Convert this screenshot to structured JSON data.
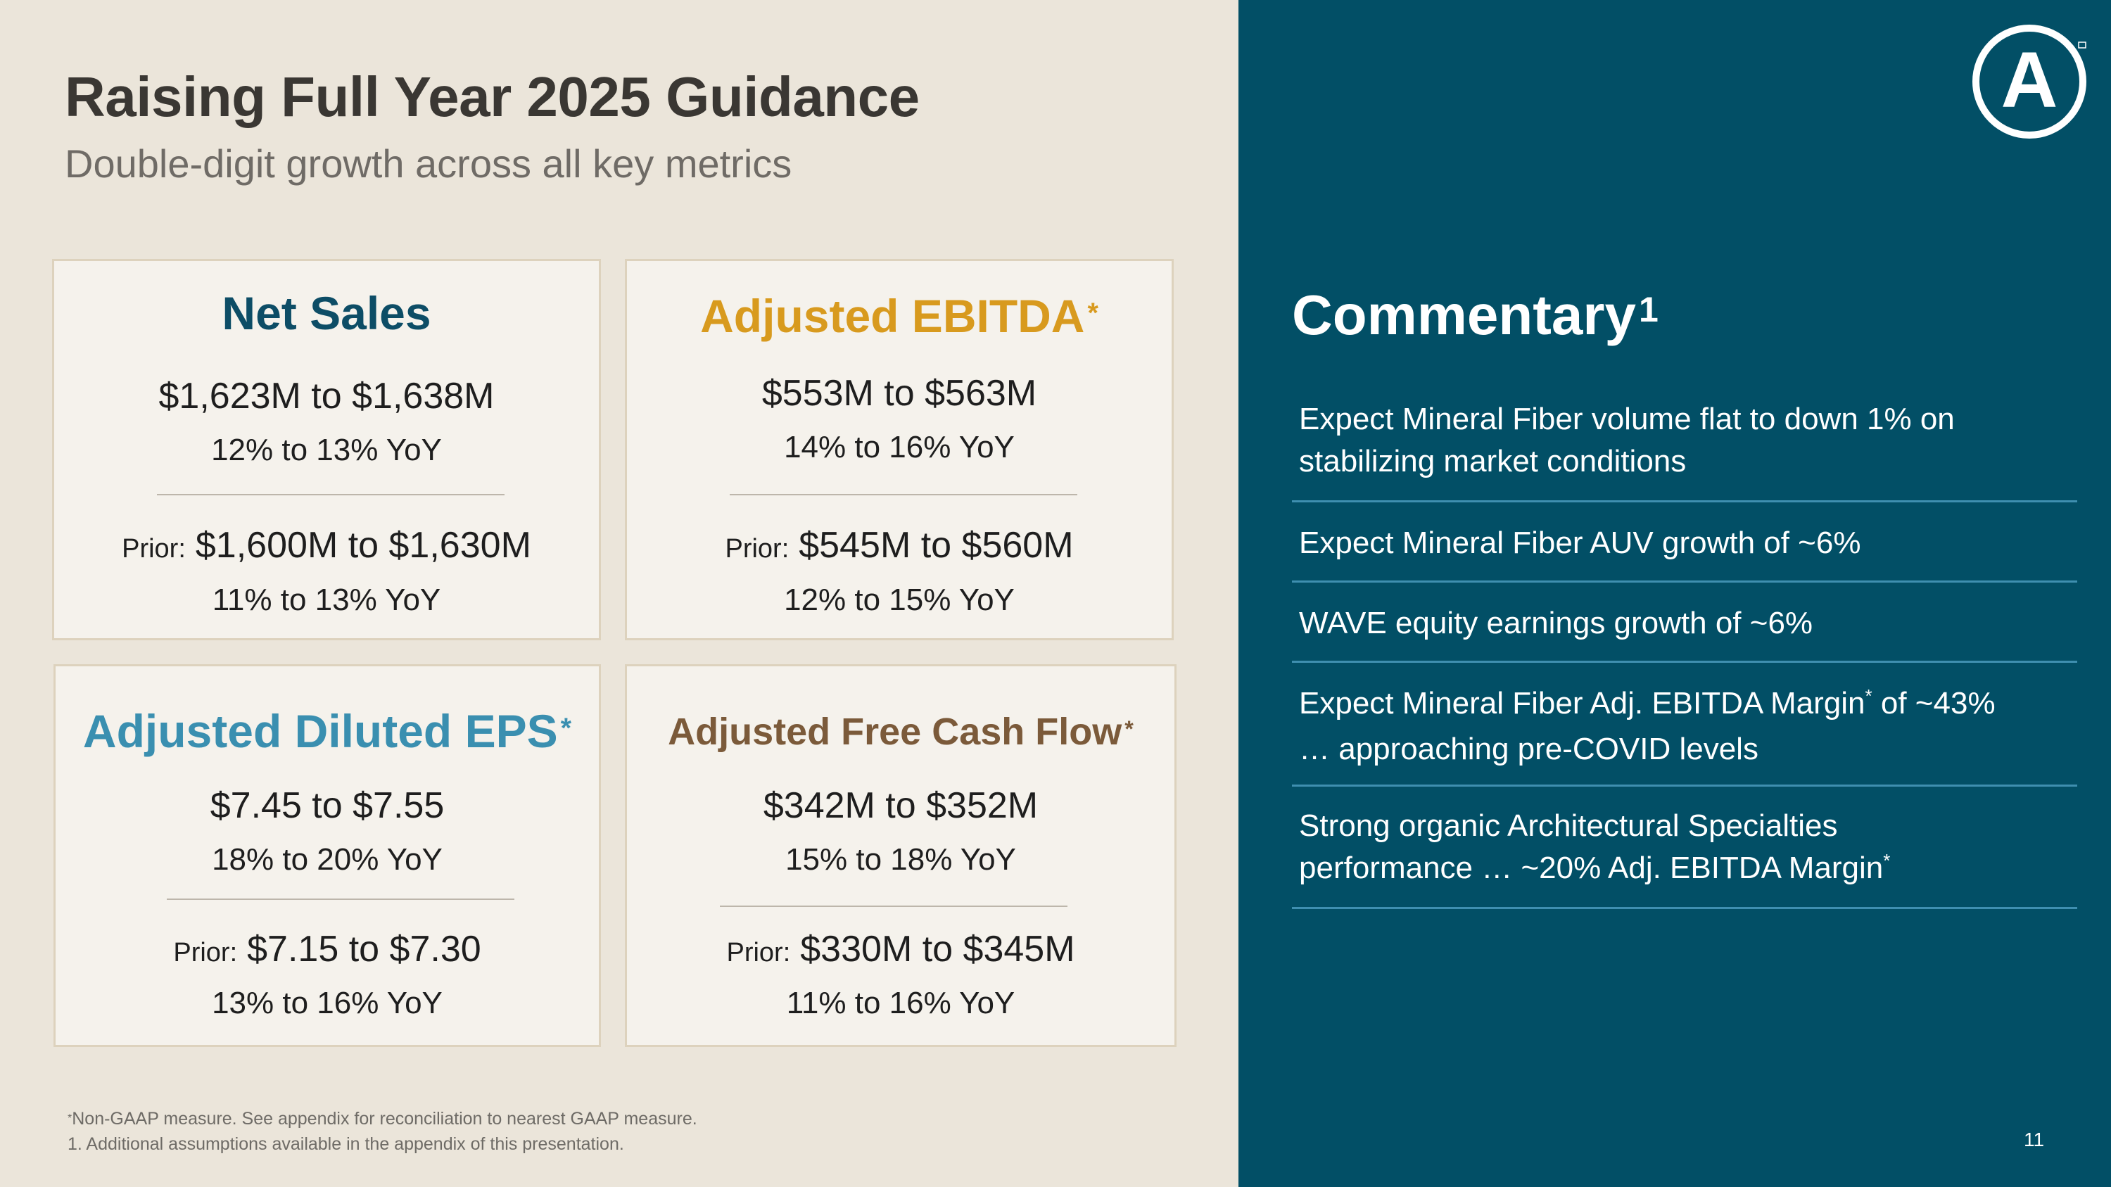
{
  "slide": {
    "title": "Raising Full Year 2025 Guidance",
    "subtitle": "Double-digit growth across all key metrics",
    "page_number": "11"
  },
  "colors": {
    "left_bg": "#ebe5da",
    "right_bg": "#024f66",
    "net_sales": "#0d4d66",
    "adj_ebitda": "#d89a1e",
    "adj_eps": "#3a8fb0",
    "adj_fcf": "#7b5a3a",
    "divider": "#3f8fb0"
  },
  "cards": {
    "net_sales": {
      "title": "Net Sales",
      "asterisk": "",
      "value": "$1,623M to $1,638M",
      "yoy": "12% to 13% YoY",
      "prior_label": "Prior:",
      "prior_value": "$1,600M to $1,630M",
      "prior_yoy": "11% to 13% YoY"
    },
    "adj_ebitda": {
      "title": "Adjusted EBITDA",
      "asterisk": "*",
      "value": "$553M to $563M",
      "yoy": "14% to 16% YoY",
      "prior_label": "Prior:",
      "prior_value": "$545M to $560M",
      "prior_yoy": "12% to 15% YoY"
    },
    "adj_eps": {
      "title": "Adjusted Diluted EPS",
      "asterisk": "*",
      "value": "$7.45 to $7.55",
      "yoy": "18% to 20% YoY",
      "prior_label": "Prior:",
      "prior_value": "$7.15 to $7.30",
      "prior_yoy": "13% to 16% YoY"
    },
    "adj_fcf": {
      "title": "Adjusted Free Cash Flow",
      "asterisk": "*",
      "value": "$342M to $352M",
      "yoy": "15% to 18% YoY",
      "prior_label": "Prior:",
      "prior_value": "$330M to $345M",
      "prior_yoy": "11% to 16% YoY"
    }
  },
  "footnotes": {
    "note1_mark": "*",
    "note1_text": "Non-GAAP measure. See appendix for reconciliation to nearest GAAP measure.",
    "note2": "1. Additional assumptions available in the appendix of this presentation."
  },
  "commentary": {
    "title": "Commentary",
    "title_sup": "1",
    "items": [
      {
        "line1": "Expect Mineral Fiber volume flat to down 1% on",
        "line2": "stabilizing market conditions"
      },
      {
        "line1": "Expect Mineral Fiber AUV growth of ~6%"
      },
      {
        "line1": "WAVE equity earnings growth of ~6%"
      },
      {
        "line1a": "Expect Mineral Fiber Adj. EBITDA Margin",
        "line1_sup": "*",
        "line1b": " of ~43%",
        "line2": "… approaching pre-COVID levels"
      },
      {
        "line1": "Strong organic Architectural Specialties",
        "line2a": "performance … ~20% Adj. EBITDA Margin",
        "line2_sup": "*"
      }
    ]
  },
  "logo": {
    "icon": "armstrong-a-logo-icon",
    "letter": "A"
  }
}
